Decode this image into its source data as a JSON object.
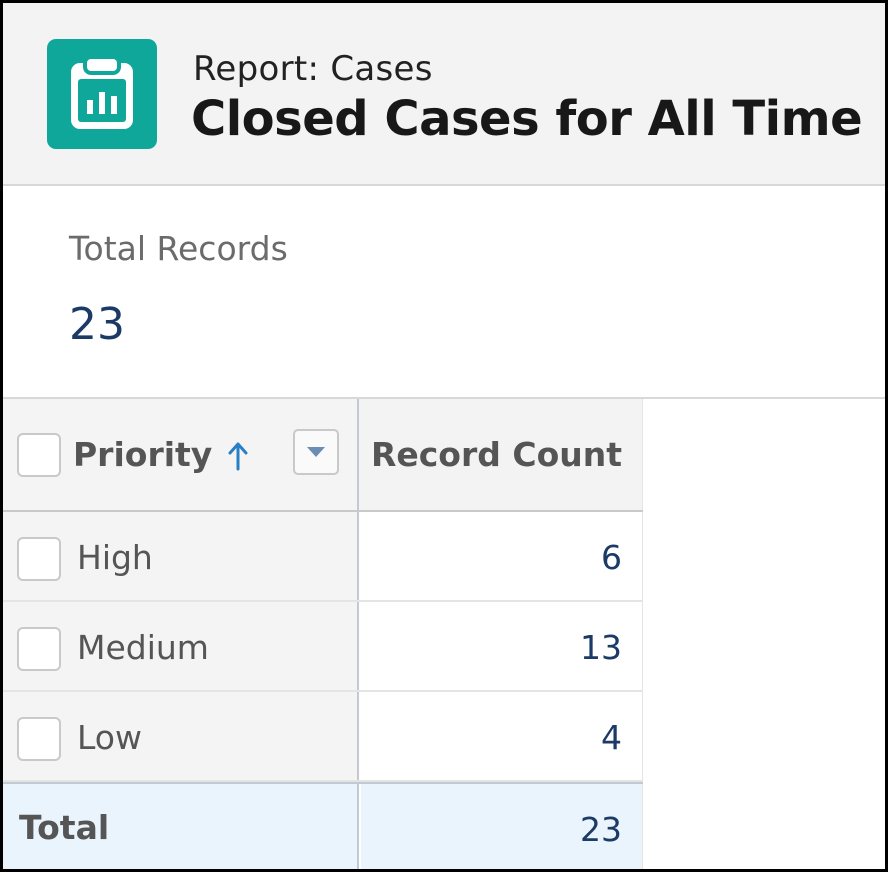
{
  "header": {
    "subtitle": "Report: Cases",
    "title": "Closed Cases for All Time",
    "icon": "report-icon",
    "icon_color": "#0fa79a"
  },
  "summary": {
    "label": "Total Records",
    "value": "23"
  },
  "table": {
    "columns": [
      {
        "label": "Priority",
        "sort": "ascending"
      },
      {
        "label": "Record Count"
      }
    ],
    "rows": [
      {
        "priority": "High",
        "count": "6"
      },
      {
        "priority": "Medium",
        "count": "13"
      },
      {
        "priority": "Low",
        "count": "4"
      }
    ],
    "total": {
      "label": "Total",
      "count": "23"
    }
  }
}
